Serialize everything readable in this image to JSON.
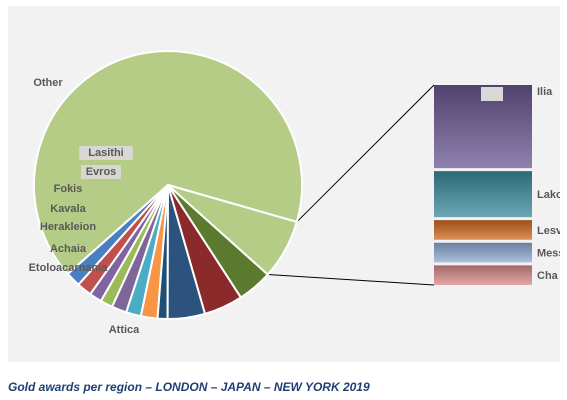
{
  "caption": "Gold awards per region – LONDON – JAPAN – NEW YORK 2019",
  "chart_data": {
    "type": "pie",
    "subtype": "bar-of-pie",
    "title": "",
    "pie": {
      "slices": [
        {
          "label": "Attica",
          "value": 66.0,
          "color": "#b5cc86"
        },
        {
          "label": "",
          "value": 1.8,
          "color": "#4a7fc2"
        },
        {
          "label": "Etoloacarnania",
          "value": 1.8,
          "color": "#c0504d"
        },
        {
          "label": "",
          "value": 1.5,
          "color": "#8064a2"
        },
        {
          "label": "Achaia",
          "value": 1.5,
          "color": "#9bbb59"
        },
        {
          "label": "Herakleion",
          "value": 1.8,
          "color": "#7f6598"
        },
        {
          "label": "Kavala",
          "value": 1.8,
          "color": "#4bacc6"
        },
        {
          "label": "Fokis",
          "value": 2.0,
          "color": "#f79646"
        },
        {
          "label": "Evros",
          "value": 1.2,
          "color": "#1f4e79"
        },
        {
          "label": "Lasithi",
          "value": 4.5,
          "color": "#2c527e"
        },
        {
          "label": "",
          "value": 4.7,
          "color": "#8b2a2a"
        },
        {
          "label": "Other",
          "value": 4.2,
          "color": "#5c7a2e"
        },
        {
          "label": "",
          "value": 7.2,
          "color": "#b5cc86",
          "exploded_to_bar": true
        }
      ]
    },
    "bar": {
      "segments": [
        {
          "label": "Ilia",
          "value": 3.56,
          "color": "#6a5791"
        },
        {
          "label": "Lako",
          "value": 1.97,
          "color": "#3a8a9c"
        },
        {
          "label": "Lesv",
          "value": 0.84,
          "color": "#d06a1f"
        },
        {
          "label": "Mess",
          "value": 0.84,
          "color": "#8fa9d4"
        },
        {
          "label": "Cha",
          "value": 0.84,
          "color": "#d98a8a"
        }
      ]
    }
  }
}
